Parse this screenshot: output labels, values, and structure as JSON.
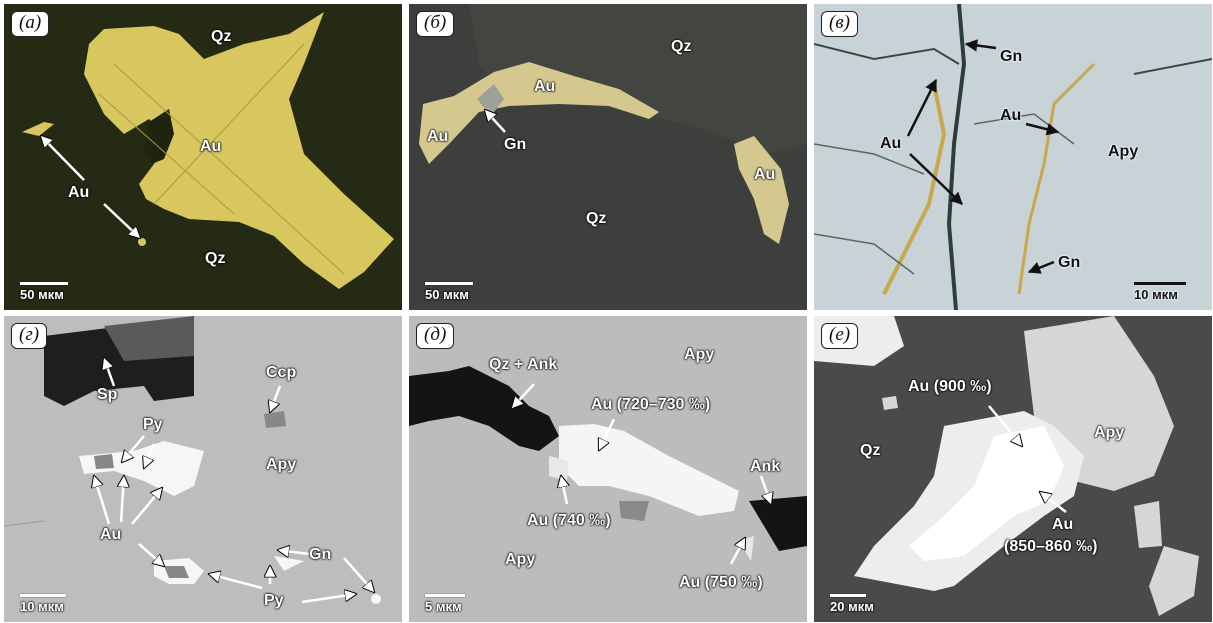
{
  "panels": {
    "a": {
      "label": "(а)",
      "minerals": {
        "qz_top": "Qz",
        "au_center": "Au",
        "au_left": "Au",
        "qz_bottom": "Qz"
      },
      "scale": "50 мкм"
    },
    "b": {
      "label": "(б)",
      "minerals": {
        "qz_top": "Qz",
        "au_top": "Au",
        "au_left": "Au",
        "gn": "Gn",
        "qz_center": "Qz",
        "au_right": "Au"
      },
      "scale": "50 мкм"
    },
    "c": {
      "label": "(в)",
      "minerals": {
        "gn_top": "Gn",
        "au_mid": "Au",
        "au_left": "Au",
        "apy": "Apy",
        "gn_bottom": "Gn"
      },
      "scale": "10 мкм"
    },
    "d": {
      "label": "(г)",
      "minerals": {
        "sp": "Sp",
        "ccp": "Ccp",
        "py_top": "Py",
        "apy": "Apy",
        "au": "Au",
        "gn": "Gn",
        "py_bottom": "Py"
      },
      "scale": "10 мкм"
    },
    "e": {
      "label": "(д)",
      "minerals": {
        "qz_ank": "Qz + Ank",
        "apy_top": "Apy",
        "au_720": "Au (720–730 ‰)",
        "ank": "Ank",
        "au_740": "Au (740 ‰)",
        "apy_bottom": "Apy",
        "au_750": "Au (750 ‰)"
      },
      "scale": "5 мкм"
    },
    "f": {
      "label": "(е)",
      "minerals": {
        "au_900": "Au (900 ‰)",
        "qz": "Qz",
        "apy": "Apy",
        "au_850_line1": "Au",
        "au_850_line2": "(850–860 ‰)"
      },
      "scale": "20 мкм"
    }
  }
}
